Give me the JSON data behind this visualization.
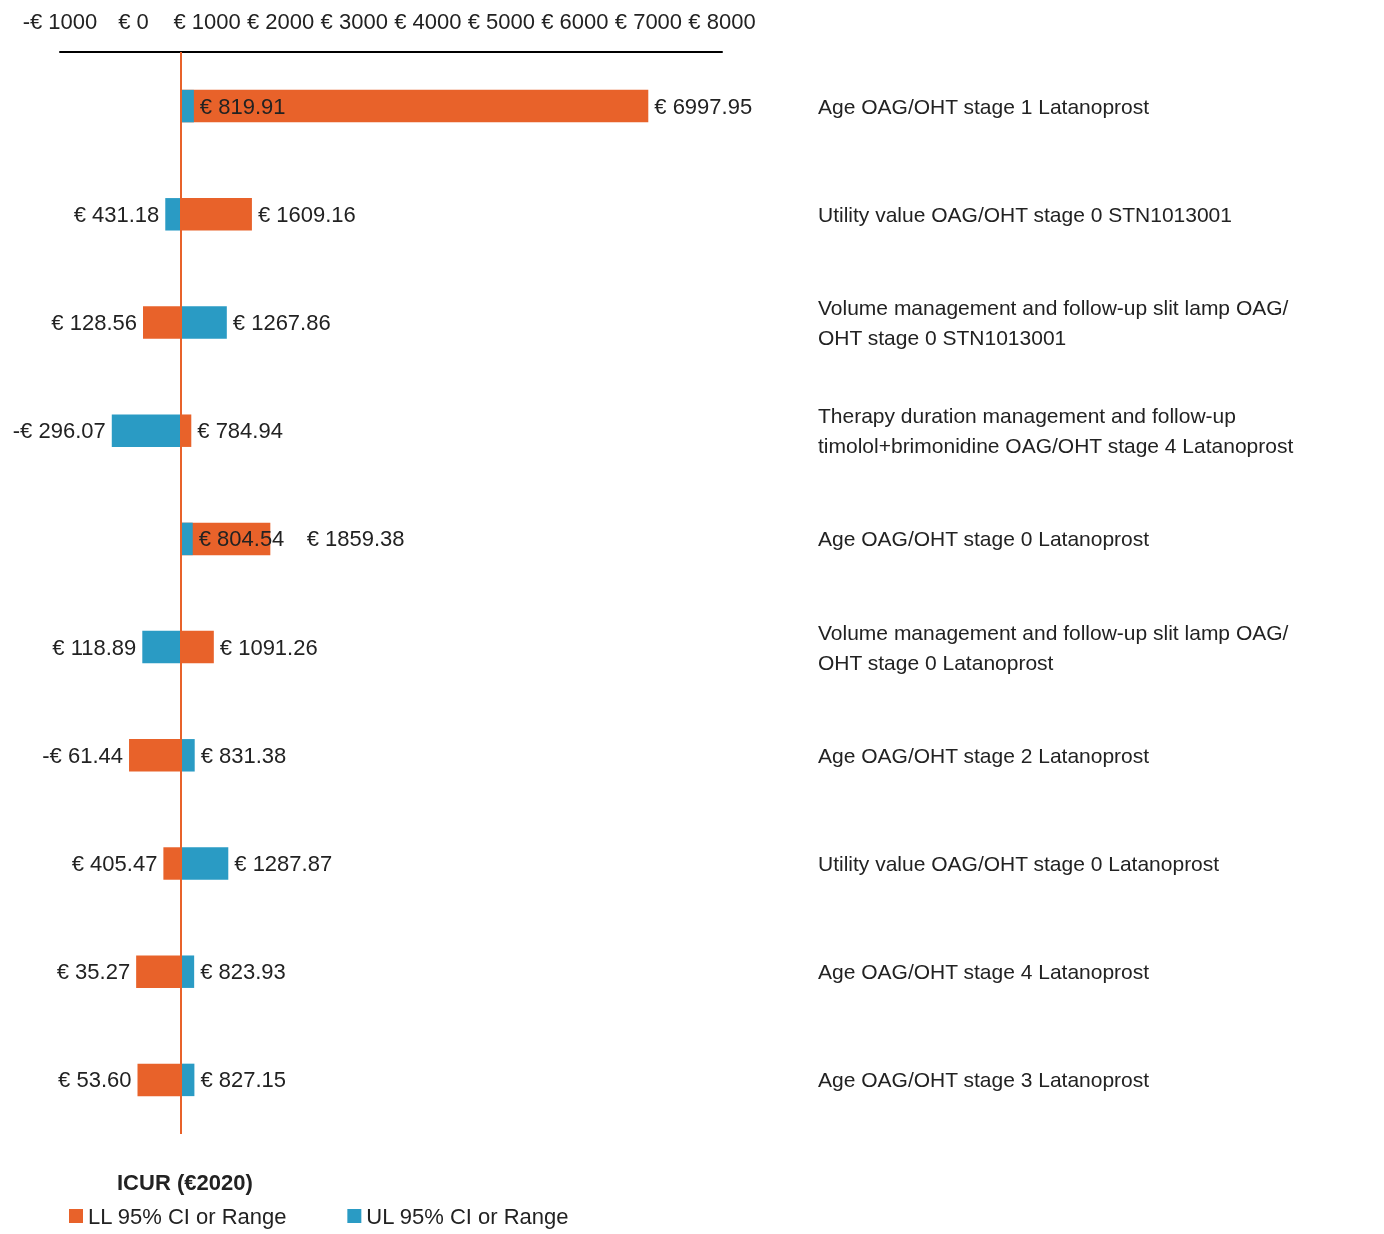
{
  "chart_data": {
    "type": "bar",
    "orientation": "horizontal",
    "xlabel": "ICUR (€2020)",
    "categories": [
      "Age OAG/OHT stage 1 Latanoprost",
      "Utility value OAG/OHT stage 0 STN1013001",
      "Volume management and follow-up slit lamp OAG/OHT stage 0 STN1013001",
      "Therapy duration management and follow-up timolol+brimonidine OAG/OHT stage 4 Latanoprost",
      "Age OAG/OHT stage 0 Latanoprost",
      "Volume management and follow-up slit lamp OAG/OHT stage 0 Latanoprost",
      "Age OAG/OHT stage 2 Latanoprost",
      "Utility value OAG/OHT stage 0 Latanoprost",
      "Age OAG/OHT stage 4 Latanoprost",
      "Age OAG/OHT stage 3 Latanoprost"
    ],
    "series": [
      {
        "name": "LL 95% CI or Range",
        "color": "#e8622a",
        "base": [
          642,
          642,
          642,
          642,
          642,
          642,
          642,
          642,
          642,
          642
        ],
        "values": [
          6355.95,
          967.16,
          -513.44,
          142.94,
          1217.38,
          449.26,
          -703.44,
          -236.53,
          -606.73,
          -588.4
        ],
        "value_labels": [
          "€ 6997.95",
          "€ 1609.16",
          "€ 128.56",
          "€ 784.94",
          "€ 1859.38",
          "€ 1091.26",
          "-€ 61.44",
          "€ 405.47",
          "€ 35.27",
          "€ 53.60"
        ]
      },
      {
        "name": "UL 95% CI or Range",
        "color": "#2a9bc4",
        "base": [
          642,
          642,
          642,
          642,
          642,
          642,
          642,
          642,
          642,
          642
        ],
        "values": [
          177.91,
          -210.82,
          625.86,
          -938.07,
          162.54,
          -523.11,
          189.38,
          645.87,
          181.93,
          185.15
        ],
        "value_labels": [
          "€ 819.91",
          "€ 431.18",
          "€ 1267.86",
          "-€ 296.07",
          "€ 804.54",
          "€ 118.89",
          "€ 831.38",
          "€ 1287.87",
          "€ 823.93",
          "€ 827.15"
        ]
      }
    ],
    "xlim": [
      -1000,
      8000
    ],
    "xticks": [
      {
        "value": -1000,
        "label": "-€ 1000"
      },
      {
        "value": 0,
        "label": "€ 0"
      },
      {
        "value": 1000,
        "label": "€ 1000"
      },
      {
        "value": 2000,
        "label": "€ 2000"
      },
      {
        "value": 3000,
        "label": "€ 3000"
      },
      {
        "value": 4000,
        "label": "€ 4000"
      },
      {
        "value": 5000,
        "label": "€ 5000"
      },
      {
        "value": 6000,
        "label": "€ 6000"
      },
      {
        "value": 7000,
        "label": "€ 7000"
      },
      {
        "value": 8000,
        "label": "€ 8000"
      }
    ],
    "ref_lines": [
      {
        "axis": "x",
        "value": 642,
        "color": "#e8622a"
      }
    ],
    "legend": "bottom left",
    "grid": false
  }
}
